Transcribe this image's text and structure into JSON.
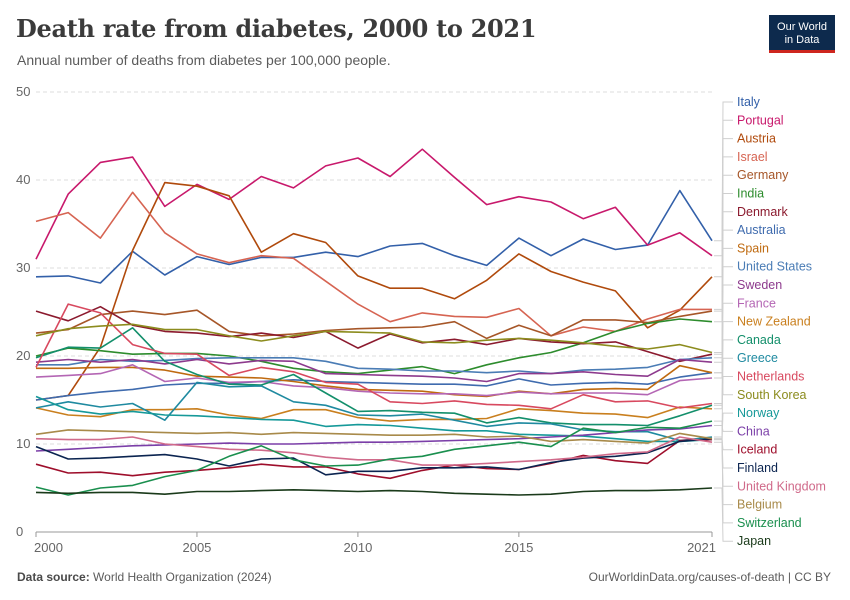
{
  "header": {
    "title": "Death rate from diabetes, 2000 to 2021",
    "subtitle": "Annual number of deaths from diabetes per 100,000 people.",
    "logo_line1": "Our World",
    "logo_line2": "in Data"
  },
  "footer": {
    "source_label": "Data source:",
    "source_text": "World Health Organization (2024)",
    "url": "OurWorldinData.org/causes-of-death | CC BY"
  },
  "chart_data": {
    "type": "line",
    "title": "Death rate from diabetes, 2000 to 2021",
    "xlabel": "",
    "ylabel": "",
    "xlim": [
      2000,
      2021
    ],
    "ylim": [
      0,
      50
    ],
    "yticks": [
      0,
      10,
      20,
      30,
      40,
      50
    ],
    "xticks": [
      2000,
      2005,
      2010,
      2015,
      2021
    ],
    "grid": "horizontal dashed",
    "legend": "right",
    "x": [
      2000,
      2001,
      2002,
      2003,
      2004,
      2005,
      2006,
      2007,
      2008,
      2009,
      2010,
      2011,
      2012,
      2013,
      2014,
      2015,
      2016,
      2017,
      2018,
      2019,
      2020,
      2021
    ],
    "series": [
      {
        "name": "Italy",
        "color": "#3360a9",
        "values": [
          29.0,
          29.1,
          28.3,
          31.9,
          29.2,
          31.3,
          30.4,
          31.2,
          31.2,
          31.8,
          31.3,
          32.5,
          32.8,
          31.4,
          30.3,
          33.4,
          31.4,
          33.3,
          32.1,
          32.6,
          38.8,
          33.1
        ]
      },
      {
        "name": "Portugal",
        "color": "#c8196c",
        "values": [
          31.0,
          38.4,
          42.0,
          42.6,
          37.0,
          39.5,
          37.8,
          40.4,
          39.1,
          41.6,
          42.5,
          40.4,
          43.5,
          40.3,
          37.2,
          38.1,
          37.5,
          35.6,
          36.9,
          32.6,
          34.0,
          31.4
        ]
      },
      {
        "name": "Austria",
        "color": "#b04a0c",
        "values": [
          15.0,
          15.5,
          21.0,
          32.0,
          39.7,
          39.3,
          38.2,
          31.8,
          33.9,
          32.9,
          29.1,
          27.7,
          27.7,
          26.5,
          28.6,
          31.6,
          29.6,
          28.4,
          27.4,
          23.2,
          25.2,
          29.0
        ]
      },
      {
        "name": "Israel",
        "color": "#d66452",
        "values": [
          35.3,
          36.3,
          33.4,
          38.6,
          34.0,
          31.6,
          30.6,
          31.4,
          31.1,
          28.5,
          25.9,
          23.9,
          24.9,
          24.5,
          24.4,
          25.4,
          22.3,
          23.3,
          22.8,
          24.2,
          25.3,
          25.3
        ]
      },
      {
        "name": "Germany",
        "color": "#a65628",
        "values": [
          22.6,
          23.0,
          24.7,
          25.1,
          24.7,
          25.2,
          22.8,
          22.3,
          22.5,
          22.9,
          23.1,
          23.2,
          23.3,
          23.9,
          22.0,
          23.5,
          22.3,
          24.1,
          24.1,
          23.8,
          24.5,
          25.1
        ]
      },
      {
        "name": "India",
        "color": "#2d8c2d",
        "values": [
          20.0,
          20.9,
          20.6,
          20.2,
          20.3,
          20.3,
          20.0,
          19.4,
          18.6,
          18.2,
          18.0,
          18.4,
          18.8,
          18.0,
          19.0,
          19.8,
          20.4,
          21.5,
          22.8,
          23.7,
          24.2,
          23.9
        ]
      },
      {
        "name": "Denmark",
        "color": "#8b1a2e",
        "values": [
          25.1,
          24.0,
          25.6,
          23.5,
          22.8,
          22.6,
          22.2,
          22.6,
          22.1,
          22.8,
          20.9,
          22.5,
          21.5,
          21.9,
          21.3,
          22.0,
          21.6,
          21.4,
          21.6,
          20.5,
          19.4,
          20.2
        ]
      },
      {
        "name": "Australia",
        "color": "#3f6bae",
        "values": [
          15.0,
          15.5,
          15.9,
          16.2,
          16.7,
          16.9,
          16.9,
          17.1,
          17.3,
          17.1,
          17.0,
          16.9,
          16.8,
          16.8,
          16.6,
          17.4,
          16.7,
          16.9,
          17.0,
          16.8,
          17.6,
          18.1
        ]
      },
      {
        "name": "Spain",
        "color": "#bf6a10",
        "values": [
          18.6,
          18.6,
          18.7,
          18.7,
          18.4,
          17.7,
          17.6,
          17.5,
          17.1,
          16.6,
          16.2,
          16.1,
          16.0,
          15.6,
          15.4,
          16.0,
          15.7,
          16.2,
          16.3,
          16.2,
          18.9,
          18.1
        ]
      },
      {
        "name": "United States",
        "color": "#4a7cb5",
        "values": [
          19.0,
          19.0,
          19.6,
          19.4,
          19.5,
          19.7,
          19.8,
          19.8,
          19.8,
          19.4,
          18.6,
          18.5,
          18.3,
          18.3,
          18.1,
          18.3,
          18.0,
          18.4,
          18.5,
          18.7,
          19.6,
          19.8
        ]
      },
      {
        "name": "Sweden",
        "color": "#8d3a8d",
        "values": [
          19.3,
          19.6,
          19.3,
          19.6,
          19.1,
          19.6,
          19.1,
          19.5,
          19.4,
          18.0,
          17.9,
          17.8,
          17.7,
          17.5,
          17.1,
          18.0,
          18.0,
          18.2,
          17.9,
          17.7,
          19.6,
          19.3
        ]
      },
      {
        "name": "France",
        "color": "#b466b4",
        "values": [
          17.6,
          17.8,
          18.0,
          19.0,
          17.1,
          17.5,
          17.0,
          17.1,
          16.6,
          16.4,
          16.0,
          15.8,
          15.7,
          15.7,
          15.5,
          15.9,
          15.7,
          15.8,
          15.8,
          15.6,
          17.2,
          17.5
        ]
      },
      {
        "name": "New Zealand",
        "color": "#c97f1e",
        "values": [
          14.1,
          13.3,
          13.1,
          13.9,
          13.9,
          14.0,
          13.3,
          12.9,
          13.9,
          13.9,
          13.0,
          12.6,
          12.8,
          12.8,
          12.9,
          14.0,
          13.8,
          13.5,
          13.4,
          13.0,
          14.2,
          14.0
        ]
      },
      {
        "name": "Canada",
        "color": "#138f6b",
        "values": [
          19.8,
          21.0,
          20.9,
          23.2,
          19.4,
          17.9,
          16.8,
          16.7,
          17.9,
          15.8,
          13.7,
          13.8,
          13.6,
          13.5,
          12.4,
          13.0,
          12.4,
          12.2,
          12.2,
          12.1,
          13.2,
          14.4
        ]
      },
      {
        "name": "Greece",
        "color": "#1f8aa0",
        "values": [
          14.1,
          14.8,
          14.2,
          14.6,
          12.7,
          17.0,
          16.5,
          16.6,
          14.8,
          14.4,
          13.3,
          13.2,
          13.4,
          12.7,
          12.0,
          12.4,
          12.3,
          11.6,
          11.4,
          11.4,
          10.4,
          10.8
        ]
      },
      {
        "name": "Netherlands",
        "color": "#d8495f",
        "values": [
          18.7,
          25.9,
          24.9,
          21.3,
          20.3,
          20.2,
          17.8,
          18.7,
          18.2,
          17.0,
          16.8,
          14.8,
          14.6,
          14.9,
          14.5,
          14.4,
          14.0,
          15.6,
          14.8,
          14.9,
          14.1,
          14.6
        ]
      },
      {
        "name": "South Korea",
        "color": "#8c8c1e",
        "values": [
          22.3,
          23.1,
          23.4,
          23.6,
          23.0,
          23.0,
          22.3,
          21.7,
          22.3,
          22.8,
          22.7,
          22.6,
          21.6,
          21.5,
          21.8,
          22.0,
          21.8,
          21.5,
          21.1,
          20.8,
          21.3,
          20.4
        ]
      },
      {
        "name": "Norway",
        "color": "#169999",
        "values": [
          15.4,
          13.9,
          13.4,
          13.7,
          13.3,
          13.2,
          13.0,
          12.8,
          12.7,
          12.0,
          12.2,
          12.1,
          11.8,
          11.5,
          11.5,
          11.1,
          11.0,
          10.9,
          10.6,
          10.3,
          10.3,
          10.5
        ]
      },
      {
        "name": "China",
        "color": "#7b3fa8",
        "values": [
          9.2,
          9.4,
          9.6,
          9.8,
          9.9,
          10.0,
          10.1,
          10.0,
          10.0,
          10.1,
          10.2,
          10.2,
          10.3,
          10.4,
          10.5,
          10.6,
          10.8,
          11.0,
          11.3,
          11.6,
          11.7,
          12.1
        ]
      },
      {
        "name": "Iceland",
        "color": "#9e0e2b",
        "values": [
          7.7,
          6.7,
          6.8,
          6.4,
          6.8,
          7.0,
          7.3,
          7.7,
          7.4,
          7.4,
          6.6,
          6.1,
          7.0,
          7.6,
          7.2,
          7.1,
          7.8,
          8.7,
          8.1,
          7.8,
          10.4,
          10.5
        ]
      },
      {
        "name": "Finland",
        "color": "#0b2450",
        "values": [
          9.7,
          8.3,
          8.4,
          8.6,
          8.8,
          8.3,
          7.5,
          8.3,
          8.4,
          6.5,
          6.9,
          6.9,
          7.3,
          7.3,
          7.4,
          7.1,
          7.9,
          8.4,
          8.6,
          9.0,
          10.3,
          10.6
        ]
      },
      {
        "name": "United Kingdom",
        "color": "#d06a8a",
        "values": [
          10.6,
          10.5,
          10.5,
          10.8,
          10.0,
          9.7,
          9.4,
          9.3,
          9.0,
          8.5,
          8.2,
          8.2,
          7.6,
          7.6,
          7.8,
          8.0,
          8.2,
          8.5,
          8.9,
          9.1,
          10.8,
          10.2
        ]
      },
      {
        "name": "Belgium",
        "color": "#a88a4a",
        "values": [
          11.1,
          11.6,
          11.5,
          11.4,
          11.3,
          11.2,
          11.3,
          11.1,
          11.3,
          11.2,
          11.1,
          11.0,
          11.0,
          11.1,
          10.8,
          10.9,
          10.3,
          10.5,
          10.3,
          10.1,
          11.2,
          10.6
        ]
      },
      {
        "name": "Switzerland",
        "color": "#1a8f4e",
        "values": [
          5.1,
          4.2,
          5.0,
          5.3,
          6.3,
          7.0,
          8.6,
          9.8,
          8.2,
          7.5,
          7.6,
          8.3,
          8.6,
          9.4,
          9.8,
          10.2,
          9.7,
          11.8,
          11.3,
          11.9,
          11.8,
          12.6
        ]
      },
      {
        "name": "Japan",
        "color": "#1a3a1a",
        "values": [
          4.5,
          4.4,
          4.5,
          4.5,
          4.3,
          4.6,
          4.6,
          4.7,
          4.8,
          4.7,
          4.6,
          4.7,
          4.6,
          4.4,
          4.3,
          4.2,
          4.3,
          4.6,
          4.7,
          4.7,
          4.8,
          5.0
        ]
      }
    ]
  }
}
